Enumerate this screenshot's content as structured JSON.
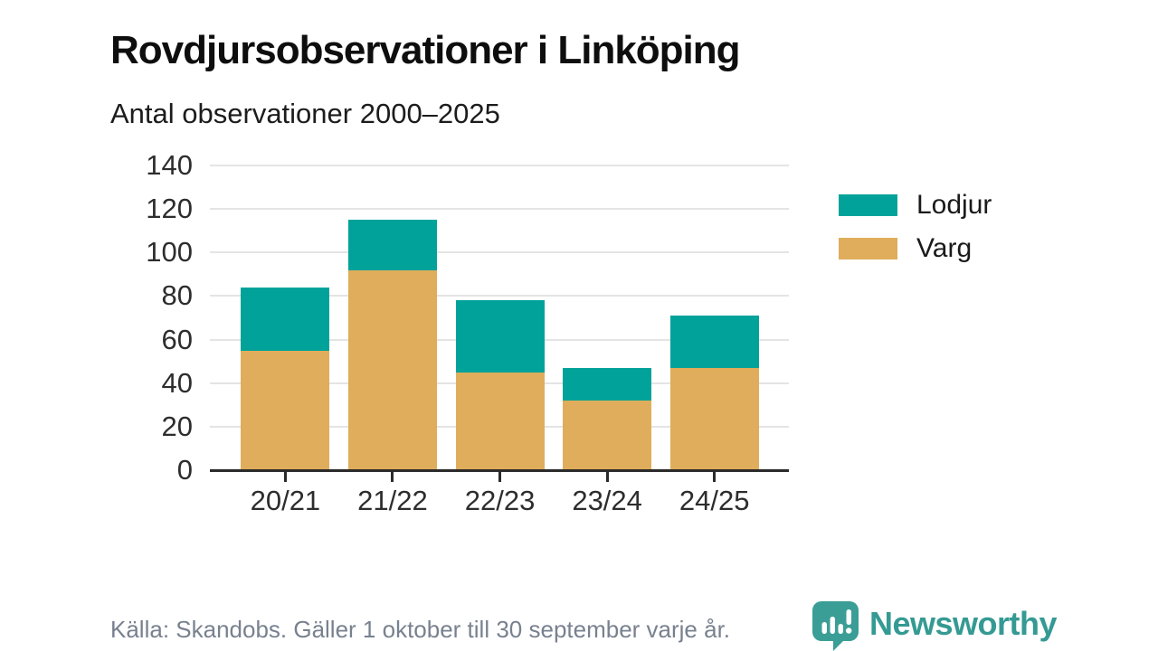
{
  "title": "Rovdjursobservationer i Linköping",
  "subtitle": "Antal observationer 2000–2025",
  "legend": [
    {
      "label": "Lodjur",
      "color": "#00a29a"
    },
    {
      "label": "Varg",
      "color": "#dfad5b"
    }
  ],
  "footer": {
    "source": "Källa: Skandobs. Gäller 1 oktober till 30 september varje år.",
    "brand": "Newsworthy",
    "brand_icon": "bar-chart-speech-bubble-icon",
    "brand_color": "#349a93"
  },
  "colors": {
    "lodjur": "#00a29a",
    "varg": "#dfad5b",
    "gridline": "#e4e4e4",
    "baseline": "#2b2b2b",
    "axis_text": "#2d2d2d",
    "footer_text": "#78818f"
  },
  "chart_data": {
    "type": "bar",
    "stacked": true,
    "title": "Rovdjursobservationer i Linköping",
    "subtitle": "Antal observationer 2000–2025",
    "categories": [
      "20/21",
      "21/22",
      "22/23",
      "23/24",
      "24/25"
    ],
    "series": [
      {
        "name": "Lodjur",
        "color": "#00a29a",
        "values": [
          29,
          23,
          33,
          15,
          24
        ]
      },
      {
        "name": "Varg",
        "color": "#dfad5b",
        "values": [
          55,
          92,
          45,
          32,
          47
        ]
      }
    ],
    "stack_order": [
      "Varg",
      "Lodjur"
    ],
    "xlabel": "",
    "ylabel": "",
    "ylim": [
      0,
      140
    ],
    "y_ticks": [
      0,
      20,
      40,
      60,
      80,
      100,
      120,
      140
    ],
    "grid": true,
    "legend_position": "right"
  }
}
